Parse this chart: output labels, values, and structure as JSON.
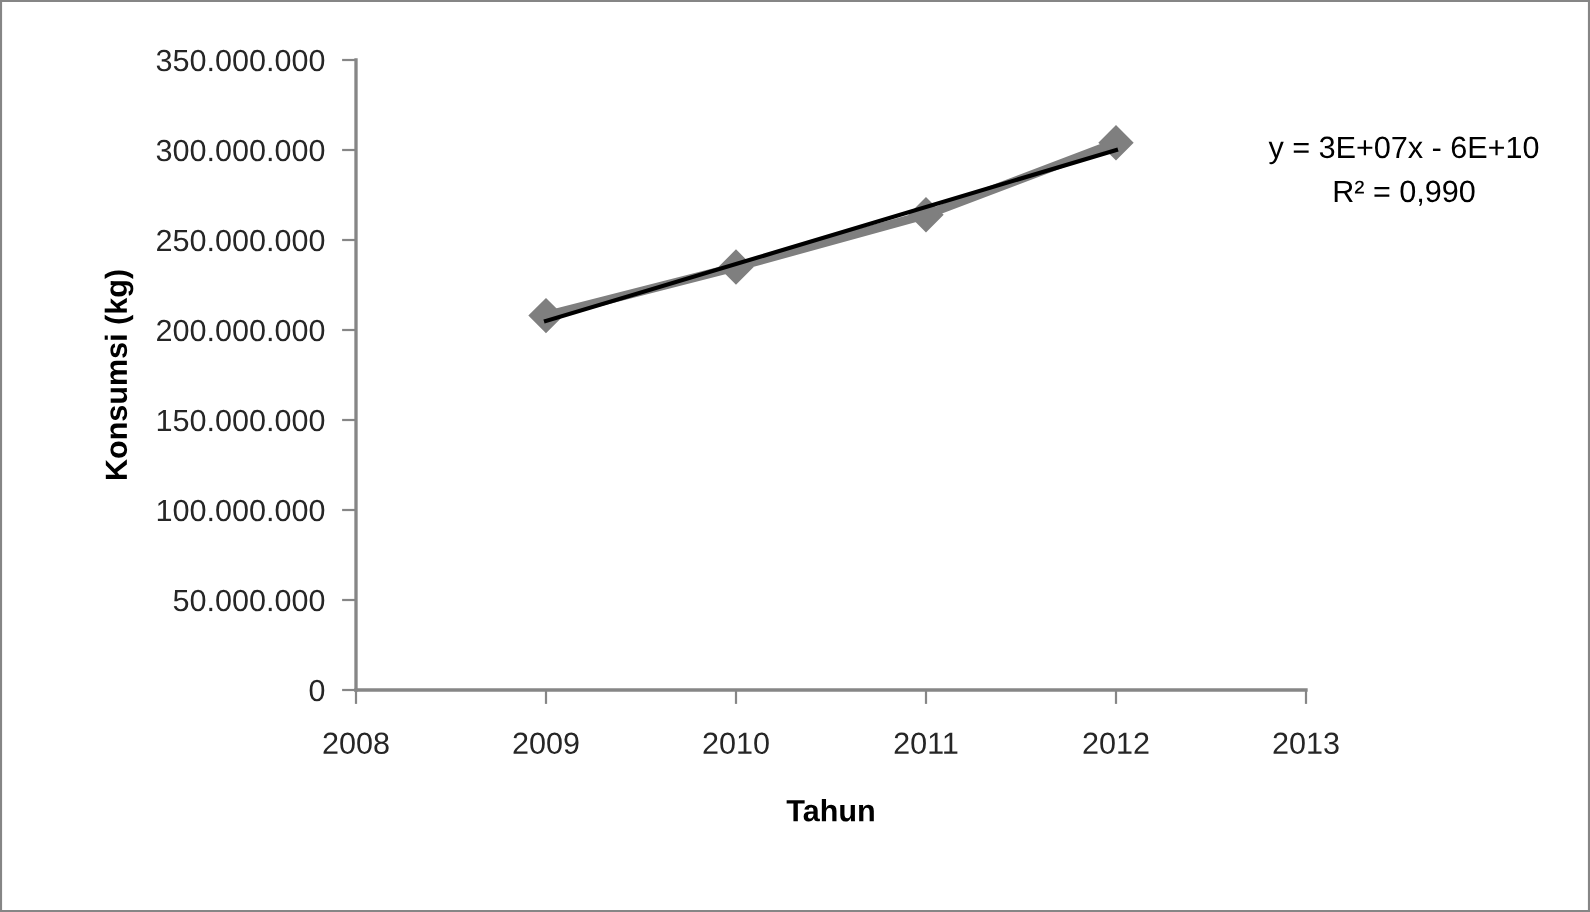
{
  "chart_data": {
    "type": "line",
    "xlabel": "Tahun",
    "ylabel": "Konsumsi (kg)",
    "x": [
      2009,
      2010,
      2011,
      2012
    ],
    "marker": "diamond",
    "series": [
      {
        "color": "#7f7f7f",
        "values": [
          208000000,
          235000000,
          264000000,
          304000000
        ]
      },
      {
        "type": "line",
        "color": "#000000",
        "x": [
          2009,
          2012
        ],
        "values": [
          205000000,
          300000000
        ],
        "marker": "none"
      }
    ],
    "xlim": [
      2008,
      2013
    ],
    "xticks": [
      2008,
      2009,
      2010,
      2011,
      2012,
      2013
    ],
    "ylim": [
      0,
      350000000
    ],
    "yticks": [
      0,
      {
        "value": 50000000,
        "label": "50.000.000"
      },
      {
        "value": 100000000,
        "label": "100.000.000"
      },
      {
        "value": 150000000,
        "label": "150.000.000"
      },
      {
        "value": 200000000,
        "label": "200.000.000"
      },
      {
        "value": 250000000,
        "label": "250.000.000"
      },
      {
        "value": 300000000,
        "label": "300.000.000"
      },
      {
        "value": 350000000,
        "label": "350.000.000"
      }
    ],
    "annotations": [
      "y = 3E+07x - 6E+10",
      "R² = 0,990"
    ]
  }
}
